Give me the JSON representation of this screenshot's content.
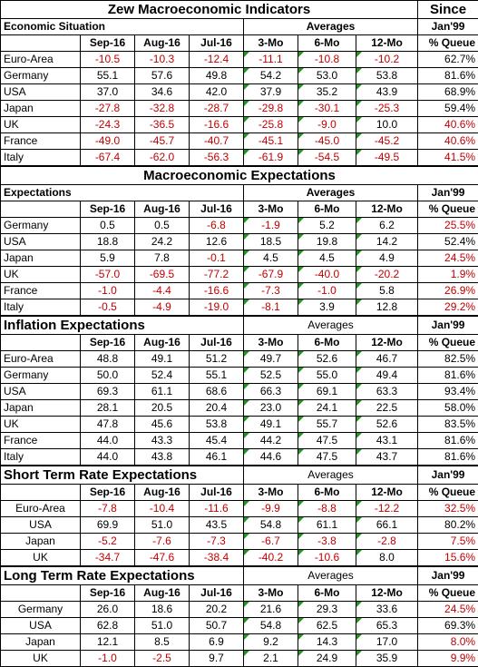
{
  "sections": [
    {
      "title": "Zew Macroeconomic Indicators",
      "since": "Since",
      "label": "Economic Situation",
      "averages": "Averages",
      "base": "Jan'99",
      "columns": [
        "Sep-16",
        "Aug-16",
        "Jul-16",
        "3-Mo",
        "6-Mo",
        "12-Mo",
        "% Queue"
      ],
      "rows": [
        {
          "label": "Euro-Area",
          "cells": [
            "-10.5",
            "-10.3",
            "-12.4",
            "-11.1",
            "-10.8",
            "-10.2",
            "62.7%"
          ]
        },
        {
          "label": "Germany",
          "cells": [
            "55.1",
            "57.6",
            "49.8",
            "54.2",
            "53.0",
            "53.8",
            "81.6%"
          ]
        },
        {
          "label": "USA",
          "cells": [
            "37.0",
            "34.6",
            "42.0",
            "37.9",
            "35.2",
            "43.9",
            "68.9%"
          ]
        },
        {
          "label": "Japan",
          "cells": [
            "-27.8",
            "-32.8",
            "-28.7",
            "-29.8",
            "-30.1",
            "-25.3",
            "59.4%"
          ]
        },
        {
          "label": "UK",
          "cells": [
            "-24.3",
            "-36.5",
            "-16.6",
            "-25.8",
            "-9.0",
            "10.0",
            "40.6%"
          ]
        },
        {
          "label": "France",
          "cells": [
            "-49.0",
            "-45.7",
            "-40.7",
            "-45.1",
            "-45.0",
            "-45.2",
            "40.6%"
          ]
        },
        {
          "label": "Italy",
          "cells": [
            "-67.4",
            "-62.0",
            "-56.3",
            "-61.9",
            "-54.5",
            "-49.5",
            "41.5%"
          ]
        }
      ]
    },
    {
      "title": "Macroeconomic Expectations",
      "label": "Expectations",
      "averages": "Averages",
      "base": "Jan'99",
      "columns": [
        "Sep-16",
        "Aug-16",
        "Jul-16",
        "3-Mo",
        "6-Mo",
        "12-Mo",
        "% Queue"
      ],
      "rows": [
        {
          "label": "Germany",
          "cells": [
            "0.5",
            "0.5",
            "-6.8",
            "-1.9",
            "5.2",
            "6.2",
            "25.5%"
          ]
        },
        {
          "label": "USA",
          "cells": [
            "18.8",
            "24.2",
            "12.6",
            "18.5",
            "19.8",
            "14.2",
            "52.4%"
          ]
        },
        {
          "label": "Japan",
          "cells": [
            "5.9",
            "7.8",
            "-0.1",
            "4.5",
            "4.5",
            "4.9",
            "24.5%"
          ]
        },
        {
          "label": "UK",
          "cells": [
            "-57.0",
            "-69.5",
            "-77.2",
            "-67.9",
            "-40.0",
            "-20.2",
            "1.9%"
          ]
        },
        {
          "label": "France",
          "cells": [
            "-1.0",
            "-4.4",
            "-16.6",
            "-7.3",
            "-1.0",
            "5.8",
            "26.9%"
          ]
        },
        {
          "label": "Italy",
          "cells": [
            "-0.5",
            "-4.9",
            "-19.0",
            "-8.1",
            "3.9",
            "12.8",
            "29.2%"
          ]
        }
      ]
    },
    {
      "title": "Inflation Expectations",
      "averages": "Averages",
      "base": "Jan'99",
      "columns": [
        "Sep-16",
        "Aug-16",
        "Jul-16",
        "3-Mo",
        "6-Mo",
        "12-Mo",
        "% Queue"
      ],
      "rows": [
        {
          "label": "Euro-Area",
          "cells": [
            "48.8",
            "49.1",
            "51.2",
            "49.7",
            "52.6",
            "46.7",
            "82.5%"
          ]
        },
        {
          "label": "Germany",
          "cells": [
            "50.0",
            "52.4",
            "55.1",
            "52.5",
            "55.0",
            "49.4",
            "81.6%"
          ]
        },
        {
          "label": "USA",
          "cells": [
            "69.3",
            "61.1",
            "68.6",
            "66.3",
            "69.1",
            "63.3",
            "93.4%"
          ]
        },
        {
          "label": "Japan",
          "cells": [
            "28.1",
            "20.5",
            "20.4",
            "23.0",
            "24.1",
            "22.5",
            "58.0%"
          ]
        },
        {
          "label": "UK",
          "cells": [
            "47.8",
            "45.6",
            "53.8",
            "49.1",
            "55.7",
            "52.6",
            "83.5%"
          ]
        },
        {
          "label": "France",
          "cells": [
            "44.0",
            "43.3",
            "45.4",
            "44.2",
            "47.5",
            "43.1",
            "81.6%"
          ]
        },
        {
          "label": "Italy",
          "cells": [
            "44.0",
            "43.8",
            "46.1",
            "44.6",
            "47.5",
            "43.7",
            "81.6%"
          ]
        }
      ]
    },
    {
      "title": "Short Term Rate Expectations",
      "averages": "Averages",
      "base": "Jan'99",
      "columns": [
        "Sep-16",
        "Aug-16",
        "Jul-16",
        "3-Mo",
        "6-Mo",
        "12-Mo",
        "% Queue"
      ],
      "rows": [
        {
          "label": "Euro-Area",
          "cells": [
            "-7.8",
            "-10.4",
            "-11.6",
            "-9.9",
            "-8.8",
            "-12.2",
            "32.5%"
          ]
        },
        {
          "label": "USA",
          "cells": [
            "69.9",
            "51.0",
            "43.5",
            "54.8",
            "61.1",
            "66.1",
            "80.2%"
          ]
        },
        {
          "label": "Japan",
          "cells": [
            "-5.2",
            "-7.6",
            "-7.3",
            "-6.7",
            "-3.8",
            "-2.8",
            "7.5%"
          ]
        },
        {
          "label": "UK",
          "cells": [
            "-34.7",
            "-47.6",
            "-38.4",
            "-40.2",
            "-10.6",
            "8.0",
            "15.6%"
          ]
        }
      ]
    },
    {
      "title": "Long Term Rate Expectations",
      "averages": "Averages",
      "base": "Jan'99",
      "columns": [
        "Sep-16",
        "Aug-16",
        "Jul-16",
        "3-Mo",
        "6-Mo",
        "12-Mo",
        "% Queue"
      ],
      "rows": [
        {
          "label": "Germany",
          "cells": [
            "26.0",
            "18.6",
            "20.2",
            "21.6",
            "29.3",
            "33.6",
            "24.5%"
          ]
        },
        {
          "label": "USA",
          "cells": [
            "62.8",
            "51.0",
            "50.7",
            "54.8",
            "62.5",
            "65.3",
            "69.3%"
          ]
        },
        {
          "label": "Japan",
          "cells": [
            "12.1",
            "8.5",
            "6.9",
            "9.2",
            "14.3",
            "17.0",
            "8.0%"
          ]
        },
        {
          "label": "UK",
          "cells": [
            "-1.0",
            "-2.5",
            "9.7",
            "2.1",
            "24.9",
            "35.9",
            "9.9%"
          ]
        }
      ]
    }
  ]
}
